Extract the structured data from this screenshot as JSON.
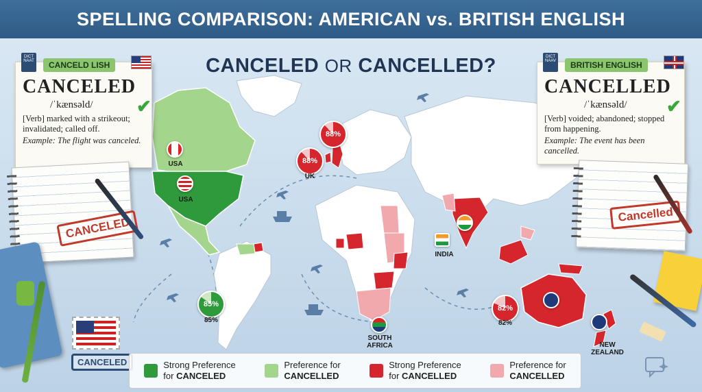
{
  "banner": {
    "title": "SPELLING COMPARISON: AMERICAN vs. BRITISH ENGLISH"
  },
  "subtitle": {
    "left": "CANCELED",
    "or": "OR",
    "right": "CANCELLED?"
  },
  "us_card": {
    "tag": "CANCELD LISH",
    "dict_label": "DICT NAAT",
    "word": "CANCELED",
    "phonetic": "/ˈkænsəld/",
    "definition": "[Verb] marked with a strikeout; invalidated; called off.",
    "example": "Example: The flight was canceled."
  },
  "uk_card": {
    "tag": "BRITISH ENGLISH",
    "dict_label": "DICT NAAV",
    "word": "CANCELLED",
    "phonetic": "/ˈkænsəld/",
    "definition": "[Verb] voided; abandoned; stopped from happening.",
    "example": "Example: The event has been cancelled."
  },
  "stamps": {
    "left": "CANCELED",
    "right": "Cancelled",
    "bottom_left": "CANCELED"
  },
  "regions": [
    {
      "label": "USA",
      "note": "canada-flag-label"
    },
    {
      "label": "USA"
    },
    {
      "label": "UK",
      "pct": "88%"
    },
    {
      "label": "INDIA"
    },
    {
      "label": "SOUTH AFRICA"
    },
    {
      "label": "NEW ZEALAND"
    }
  ],
  "percent_markers": {
    "uk_top": "88%",
    "uk_left": "88%",
    "south_america": "85%",
    "south_america_label": "85%",
    "australia": "82%",
    "australia_label": "82%"
  },
  "labels": {
    "canada": "USA",
    "usa": "USA",
    "uk": "UK",
    "india": "INDIA",
    "south_africa_1": "SOUTH",
    "south_africa_2": "AFRICA",
    "nz_1": "NEW",
    "nz_2": "ZEALAND"
  },
  "legend": [
    {
      "line1": "Strong Preference",
      "line2": "for",
      "bold": "CANCELED",
      "color": "#2f9a3b"
    },
    {
      "line1": "Preference for",
      "line2": "",
      "bold": "CANCELLED",
      "color": "#a4d58c"
    },
    {
      "line1": "Strong Preference",
      "line2": "for",
      "bold": "CANCELLED",
      "color": "#d4262c"
    },
    {
      "line1": "Preference for",
      "line2": "",
      "bold": "CANCELLED",
      "color": "#f2a9ae"
    }
  ],
  "colors": {
    "banner": "#35628f",
    "strong_canceled": "#2f9a3b",
    "pref_canceled": "#a4d58c",
    "strong_cancelled": "#d4262c",
    "pref_cancelled": "#f2a9ae",
    "land": "#ffffff"
  }
}
